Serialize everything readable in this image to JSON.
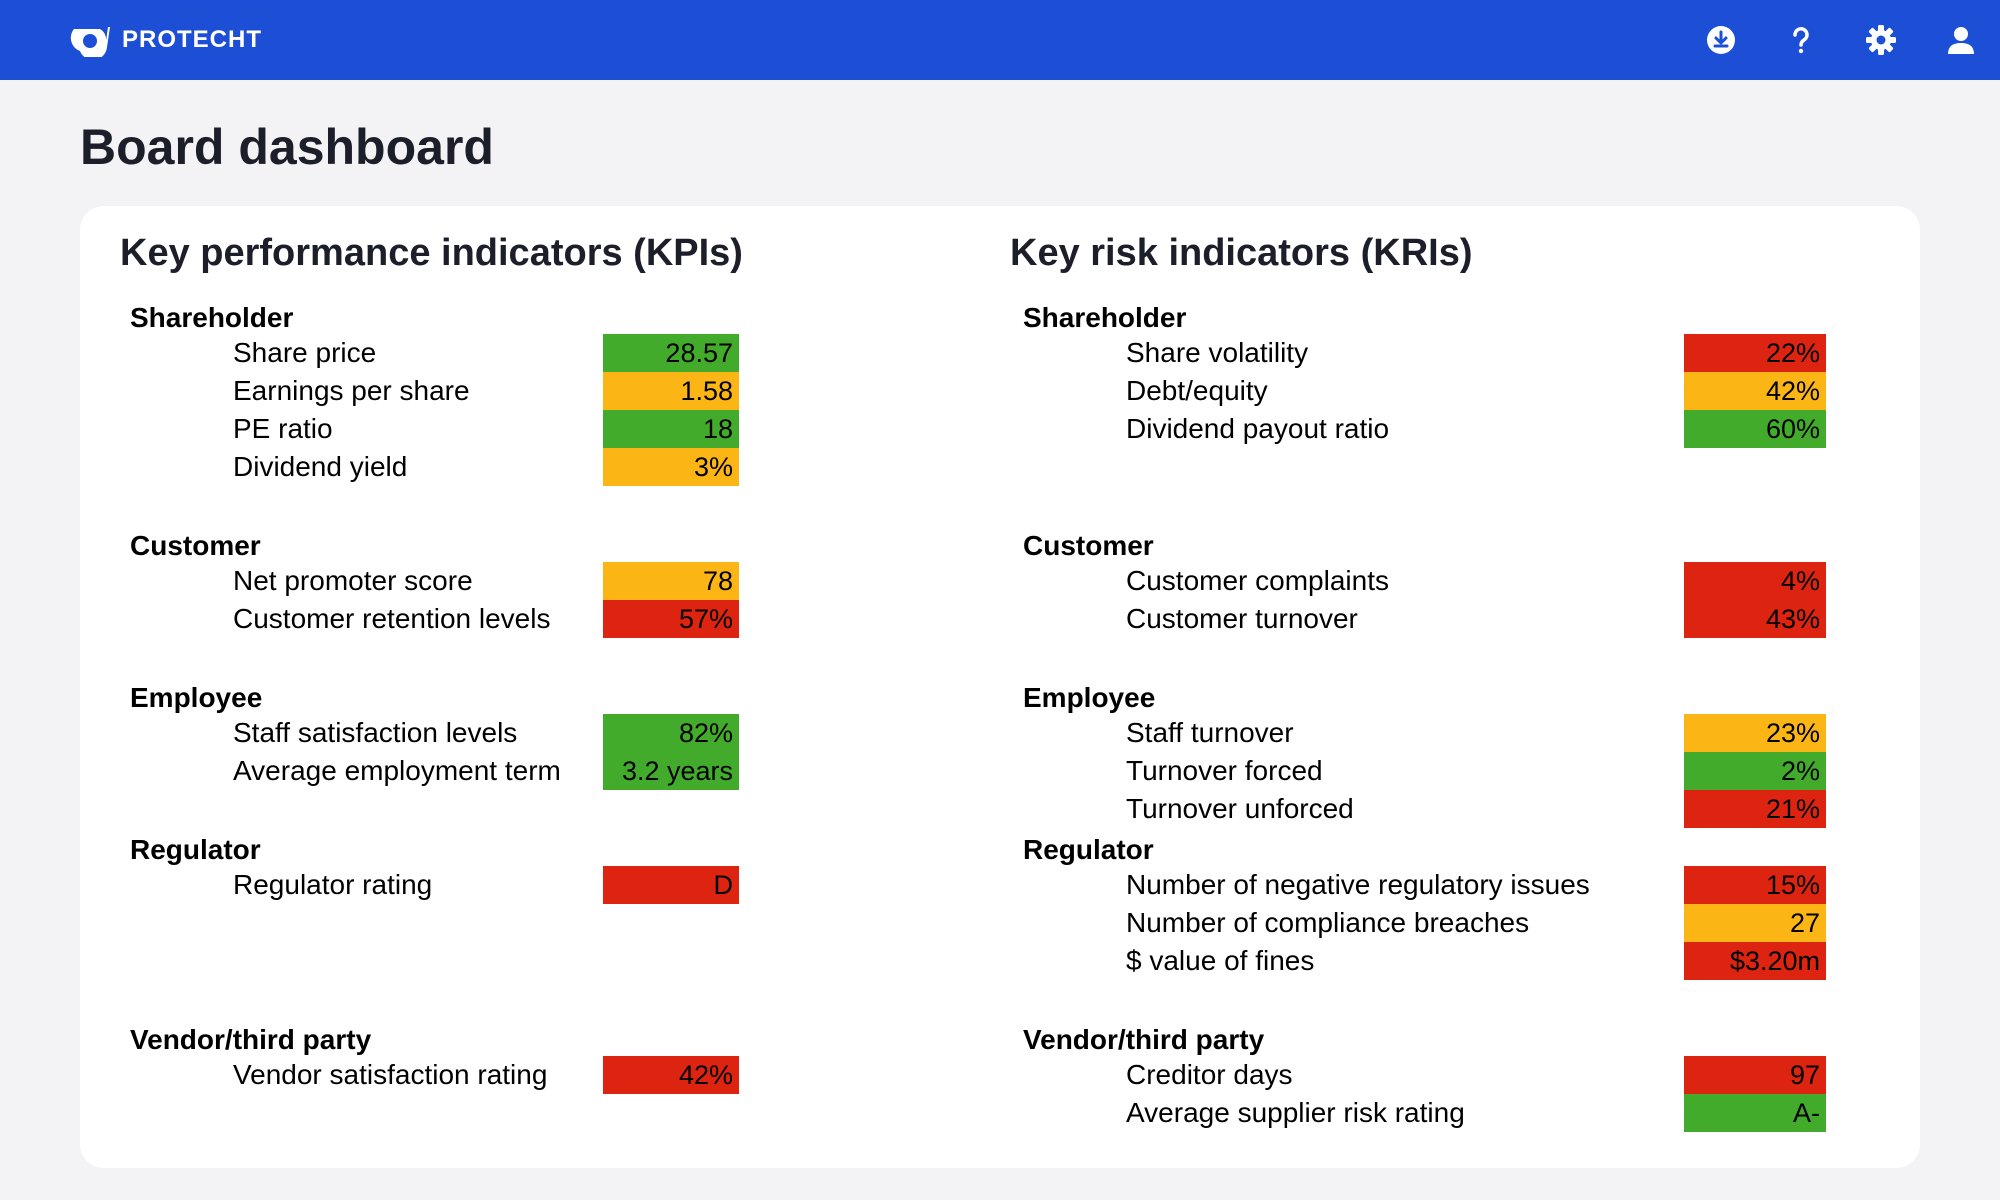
{
  "header": {
    "brand": "PROTECHT",
    "icons": [
      "download-icon",
      "help-icon",
      "settings-icon",
      "user-icon"
    ]
  },
  "page": {
    "title": "Board dashboard"
  },
  "colors": {
    "green": "#42ab2b",
    "amber": "#fbb514",
    "red": "#dc2410",
    "topbar": "#1c4fd6"
  },
  "kpi": {
    "title": "Key performance indicators (KPIs)",
    "groups": [
      {
        "name": "Shareholder",
        "rows": [
          {
            "label": "Share price",
            "value": "28.57",
            "status": "green"
          },
          {
            "label": "Earnings per share",
            "value": "1.58",
            "status": "amber"
          },
          {
            "label": "PE ratio",
            "value": "18",
            "status": "green"
          },
          {
            "label": "Dividend yield",
            "value": "3%",
            "status": "amber"
          }
        ]
      },
      {
        "name": "Customer",
        "rows": [
          {
            "label": "Net promoter score",
            "value": "78",
            "status": "amber"
          },
          {
            "label": "Customer retention levels",
            "value": "57%",
            "status": "red"
          }
        ]
      },
      {
        "name": "Employee",
        "rows": [
          {
            "label": "Staff satisfaction levels",
            "value": "82%",
            "status": "green"
          },
          {
            "label": "Average employment term",
            "value": "3.2 years",
            "status": "green"
          }
        ]
      },
      {
        "name": "Regulator",
        "rows": [
          {
            "label": "Regulator rating",
            "value": "D",
            "status": "red"
          }
        ]
      },
      {
        "name": "Vendor/third party",
        "rows": [
          {
            "label": "Vendor satisfaction rating",
            "value": "42%",
            "status": "red"
          }
        ]
      }
    ]
  },
  "kri": {
    "title": "Key risk indicators (KRIs)",
    "groups": [
      {
        "name": "Shareholder",
        "rows": [
          {
            "label": "Share volatility",
            "value": "22%",
            "status": "red"
          },
          {
            "label": "Debt/equity",
            "value": "42%",
            "status": "amber"
          },
          {
            "label": "Dividend payout ratio",
            "value": "60%",
            "status": "green"
          }
        ]
      },
      {
        "name": "Customer",
        "rows": [
          {
            "label": "Customer complaints",
            "value": "4%",
            "status": "red"
          },
          {
            "label": "Customer turnover",
            "value": "43%",
            "status": "red"
          }
        ]
      },
      {
        "name": "Employee",
        "rows": [
          {
            "label": "Staff turnover",
            "value": "23%",
            "status": "amber"
          },
          {
            "label": "Turnover forced",
            "value": "2%",
            "status": "green"
          },
          {
            "label": "Turnover unforced",
            "value": "21%",
            "status": "red"
          }
        ]
      },
      {
        "name": "Regulator",
        "rows": [
          {
            "label": "Number of negative regulatory issues",
            "value": "15%",
            "status": "red"
          },
          {
            "label": "Number of compliance breaches",
            "value": "27",
            "status": "amber"
          },
          {
            "label": "$ value of fines",
            "value": "$3.20m",
            "status": "red"
          }
        ]
      },
      {
        "name": "Vendor/third party",
        "rows": [
          {
            "label": "Creditor days",
            "value": "97",
            "status": "red"
          },
          {
            "label": "Average supplier risk rating",
            "value": "A-",
            "status": "green"
          }
        ]
      }
    ]
  }
}
